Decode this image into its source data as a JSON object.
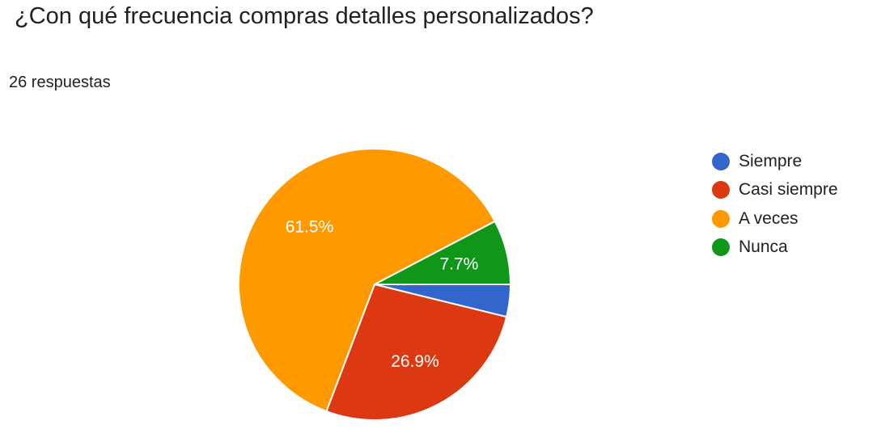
{
  "question": {
    "title": "¿Con qué frecuencia compras detalles personalizados?",
    "responses": "26 respuestas"
  },
  "chart_data": {
    "type": "pie",
    "total_responses": 26,
    "categories": [
      "Siempre",
      "Casi siempre",
      "A veces",
      "Nunca"
    ],
    "values": [
      1,
      7,
      16,
      2
    ],
    "percent_labels": [
      "",
      "26.9%",
      "61.5%",
      "7.7%"
    ],
    "colors": [
      "#3366cc",
      "#dc3912",
      "#ff9900",
      "#109618"
    ],
    "legend_position": "right"
  }
}
